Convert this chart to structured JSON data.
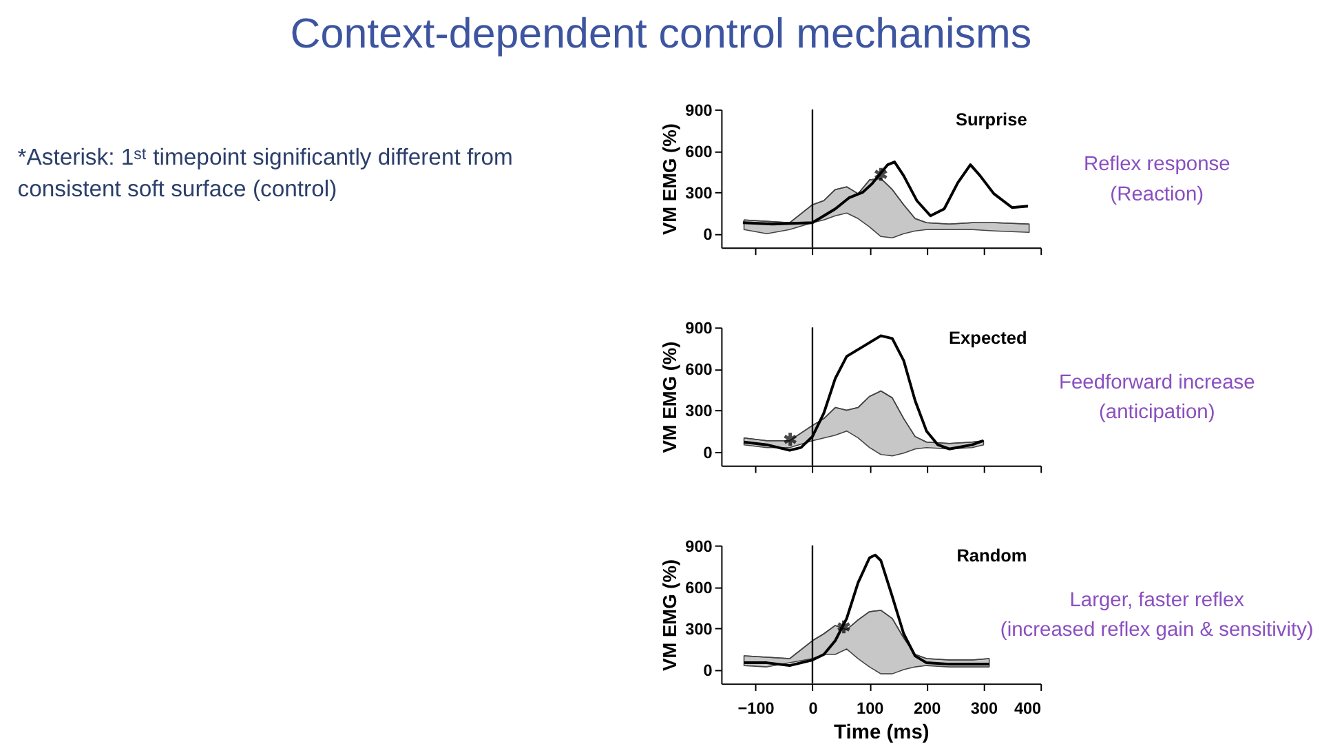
{
  "chart_data": [
    {
      "type": "line",
      "title": "Surprise",
      "ylabel": "VM EMG (%)",
      "xlim": [
        -160,
        400
      ],
      "ylim": [
        -100,
        900
      ],
      "xticks": [
        -100,
        0,
        100,
        200,
        300,
        400
      ],
      "yticks": [
        0,
        300,
        600,
        900
      ],
      "tick_labels": "y",
      "annotations": [
        "Context-dependent control mechanisms",
        "*Asterisk:  1ˢᵗ timepoint significantly different from consistent soft surface (control)",
        "Reflex response (Reaction)"
      ],
      "ref_lines": [
        {
          "axis": "x",
          "value": 0,
          "color": "#000000"
        }
      ],
      "series": [
        {
          "type": "line",
          "color": "#444444",
          "marker": "none",
          "x": [
            -120,
            -80,
            -40,
            0,
            20,
            40,
            60,
            80,
            100,
            120,
            140,
            160,
            180,
            200,
            240,
            280,
            320,
            380
          ],
          "values": [
            100,
            90,
            80,
            210,
            240,
            320,
            340,
            290,
            390,
            400,
            320,
            210,
            110,
            80,
            70,
            80,
            80,
            70
          ],
          "upper": [
            100,
            90,
            80,
            210,
            240,
            320,
            340,
            290,
            390,
            400,
            320,
            210,
            110,
            80,
            70,
            80,
            80,
            70
          ],
          "lower": [
            30,
            0,
            30,
            80,
            100,
            130,
            150,
            110,
            50,
            -20,
            -30,
            0,
            20,
            30,
            30,
            30,
            20,
            10
          ]
        },
        {
          "color": "#000000",
          "marker": "none",
          "x": [
            -122,
            -70,
            0,
            40,
            64,
            88,
            104,
            120,
            132,
            144,
            160,
            183,
            207,
            231,
            255,
            277,
            294,
            318,
            350,
            378
          ],
          "values": [
            80,
            70,
            80,
            180,
            260,
            300,
            360,
            440,
            500,
            520,
            420,
            240,
            130,
            180,
            370,
            500,
            420,
            290,
            190,
            200
          ]
        },
        {
          "type": "scatter",
          "color": "#000000",
          "marker": "cross",
          "x": [
            120
          ],
          "values": [
            430
          ]
        }
      ]
    },
    {
      "type": "line",
      "title": "Expected",
      "ylabel": "VM EMG (%)",
      "xlim": [
        -160,
        400
      ],
      "ylim": [
        -100,
        900
      ],
      "xticks": [
        -100,
        0,
        100,
        200,
        300,
        400
      ],
      "yticks": [
        0,
        300,
        600,
        900
      ],
      "tick_labels": "y",
      "annotations": [
        "Feedforward increase (anticipation)"
      ],
      "ref_lines": [
        {
          "axis": "x",
          "value": 0,
          "color": "#000000"
        }
      ],
      "series": [
        {
          "type": "line",
          "color": "#444444",
          "marker": "none",
          "x": [
            -120,
            -80,
            -40,
            0,
            20,
            40,
            60,
            80,
            100,
            120,
            140,
            160,
            180,
            200,
            240,
            280,
            300
          ],
          "values": [
            100,
            80,
            80,
            190,
            240,
            320,
            300,
            320,
            400,
            440,
            390,
            240,
            110,
            70,
            60,
            70,
            80
          ],
          "upper": [
            100,
            80,
            80,
            190,
            240,
            320,
            300,
            320,
            400,
            440,
            390,
            240,
            110,
            70,
            60,
            70,
            80
          ],
          "lower": [
            50,
            30,
            30,
            80,
            100,
            120,
            150,
            100,
            30,
            -20,
            -30,
            -10,
            20,
            30,
            20,
            30,
            50
          ]
        },
        {
          "color": "#000000",
          "marker": "none",
          "x": [
            -120,
            -80,
            -40,
            -20,
            0,
            20,
            40,
            60,
            80,
            100,
            120,
            140,
            160,
            180,
            200,
            220,
            240,
            280,
            300
          ],
          "values": [
            70,
            50,
            10,
            30,
            110,
            280,
            530,
            690,
            740,
            790,
            840,
            820,
            660,
            370,
            150,
            50,
            20,
            50,
            80
          ]
        },
        {
          "type": "scatter",
          "color": "#000000",
          "marker": "cross",
          "x": [
            -39
          ],
          "values": [
            90
          ]
        }
      ]
    },
    {
      "type": "line",
      "title": "Random",
      "xlabel": "Time (ms)",
      "ylabel": "VM EMG (%)",
      "xlim": [
        -160,
        400
      ],
      "ylim": [
        -100,
        900
      ],
      "xticks": [
        -100,
        0,
        100,
        200,
        300,
        400
      ],
      "yticks": [
        0,
        300,
        600,
        900
      ],
      "annotations": [
        "Larger, faster reflex (increased reflex gain & sensitivity)"
      ],
      "ref_lines": [
        {
          "axis": "x",
          "value": 0,
          "color": "#000000"
        }
      ],
      "series": [
        {
          "type": "line",
          "color": "#444444",
          "marker": "none",
          "x": [
            -120,
            -80,
            -40,
            0,
            20,
            40,
            60,
            80,
            100,
            120,
            140,
            160,
            180,
            200,
            240,
            280,
            310
          ],
          "values": [
            100,
            90,
            80,
            210,
            260,
            320,
            290,
            360,
            420,
            430,
            370,
            230,
            110,
            80,
            70,
            70,
            80
          ],
          "upper": [
            100,
            90,
            80,
            210,
            260,
            320,
            290,
            360,
            420,
            430,
            370,
            230,
            110,
            80,
            70,
            70,
            80
          ],
          "lower": [
            30,
            20,
            50,
            80,
            110,
            110,
            150,
            80,
            20,
            -30,
            -30,
            0,
            20,
            30,
            20,
            20,
            20
          ]
        },
        {
          "color": "#000000",
          "marker": "none",
          "x": [
            -120,
            -80,
            -40,
            0,
            20,
            40,
            60,
            80,
            100,
            110,
            120,
            140,
            160,
            180,
            200,
            240,
            280,
            310
          ],
          "values": [
            50,
            50,
            30,
            70,
            110,
            210,
            370,
            630,
            810,
            830,
            790,
            530,
            260,
            100,
            50,
            40,
            40,
            40
          ]
        },
        {
          "type": "scatter",
          "color": "#000000",
          "marker": "cross",
          "x": [
            55
          ],
          "values": [
            310
          ]
        }
      ]
    }
  ]
}
